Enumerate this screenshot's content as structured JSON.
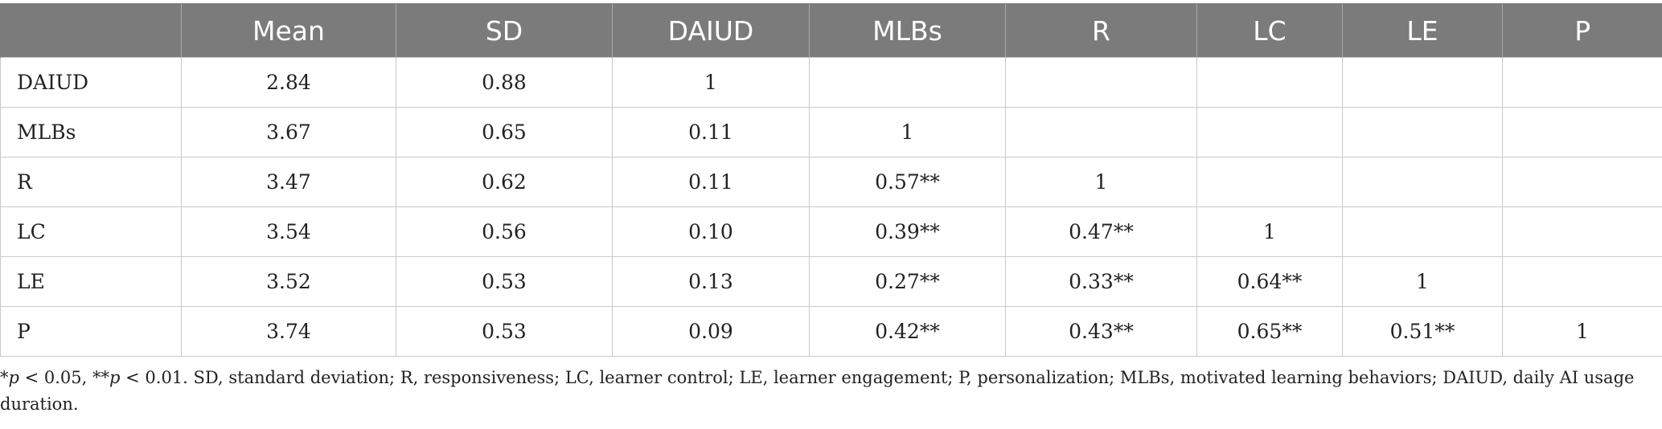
{
  "table": {
    "headers": [
      "",
      "Mean",
      "SD",
      "DAIUD",
      "MLBs",
      "R",
      "LC",
      "LE",
      "P"
    ],
    "rows": [
      [
        "DAIUD",
        "2.84",
        "0.88",
        "1",
        "",
        "",
        "",
        "",
        ""
      ],
      [
        "MLBs",
        "3.67",
        "0.65",
        "0.11",
        "1",
        "",
        "",
        "",
        ""
      ],
      [
        "R",
        "3.47",
        "0.62",
        "0.11",
        "0.57**",
        "1",
        "",
        "",
        ""
      ],
      [
        "LC",
        "3.54",
        "0.56",
        "0.10",
        "0.39**",
        "0.47**",
        "1",
        "",
        ""
      ],
      [
        "LE",
        "3.52",
        "0.53",
        "0.13",
        "0.27**",
        "0.33**",
        "0.64**",
        "1",
        ""
      ],
      [
        "P",
        "3.74",
        "0.53",
        "0.09",
        "0.42**",
        "0.43**",
        "0.65**",
        "0.51**",
        "1"
      ]
    ]
  },
  "footnote": {
    "sig1_prefix": "*",
    "sig1_p": "p",
    "sig1_rest": " < 0.05, **",
    "sig2_p": "p",
    "sig2_rest": " < 0.01. SD, standard deviation; R, responsiveness; LC, learner control; LE, learner engagement; P, personalization; MLBs, motivated learning behaviors; DAIUD, daily AI usage duration."
  }
}
